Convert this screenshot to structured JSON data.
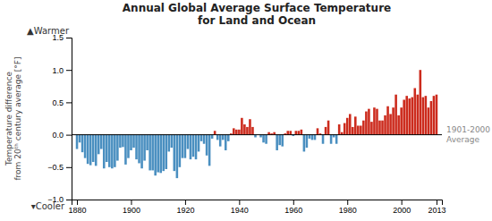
{
  "chart_data": {
    "type": "bar",
    "title": "Annual Global Average Surface Temperature\nfor Land and Ocean",
    "ylabel": "Temperature difference\nfrom 20ᵗʰ century average [°F]",
    "annotations": [
      "▲Warmer",
      "▾Cooler",
      "1901-2000\nAverage"
    ],
    "x": [
      1880,
      1881,
      1882,
      1883,
      1884,
      1885,
      1886,
      1887,
      1888,
      1889,
      1890,
      1891,
      1892,
      1893,
      1894,
      1895,
      1896,
      1897,
      1898,
      1899,
      1900,
      1901,
      1902,
      1903,
      1904,
      1905,
      1906,
      1907,
      1908,
      1909,
      1910,
      1911,
      1912,
      1913,
      1914,
      1915,
      1916,
      1917,
      1918,
      1919,
      1920,
      1921,
      1922,
      1923,
      1924,
      1925,
      1926,
      1927,
      1928,
      1929,
      1930,
      1931,
      1932,
      1933,
      1934,
      1935,
      1936,
      1937,
      1938,
      1939,
      1940,
      1941,
      1942,
      1943,
      1944,
      1945,
      1946,
      1947,
      1948,
      1949,
      1950,
      1951,
      1952,
      1953,
      1954,
      1955,
      1956,
      1957,
      1958,
      1959,
      1960,
      1961,
      1962,
      1963,
      1964,
      1965,
      1966,
      1967,
      1968,
      1969,
      1970,
      1971,
      1972,
      1973,
      1974,
      1975,
      1976,
      1977,
      1978,
      1979,
      1980,
      1981,
      1982,
      1983,
      1984,
      1985,
      1986,
      1987,
      1988,
      1989,
      1990,
      1991,
      1992,
      1993,
      1994,
      1995,
      1996,
      1997,
      1998,
      1999,
      2000,
      2001,
      2002,
      2003,
      2004,
      2005,
      2006,
      2007,
      2008,
      2009,
      2010,
      2011,
      2012,
      2013
    ],
    "values": [
      -0.22,
      -0.12,
      -0.27,
      -0.36,
      -0.45,
      -0.47,
      -0.42,
      -0.48,
      -0.3,
      -0.22,
      -0.52,
      -0.42,
      -0.5,
      -0.52,
      -0.5,
      -0.4,
      -0.2,
      -0.19,
      -0.46,
      -0.36,
      -0.24,
      -0.2,
      -0.38,
      -0.44,
      -0.52,
      -0.4,
      -0.24,
      -0.55,
      -0.55,
      -0.63,
      -0.58,
      -0.59,
      -0.56,
      -0.53,
      -0.26,
      -0.2,
      -0.56,
      -0.67,
      -0.5,
      -0.36,
      -0.36,
      -0.22,
      -0.38,
      -0.34,
      -0.38,
      -0.26,
      -0.1,
      -0.14,
      -0.32,
      -0.48,
      -0.06,
      0.06,
      -0.08,
      -0.18,
      -0.08,
      -0.24,
      -0.1,
      0.02,
      0.1,
      0.08,
      0.08,
      0.26,
      0.16,
      0.12,
      0.24,
      0.12,
      -0.04,
      0.0,
      -0.04,
      -0.12,
      -0.14,
      0.04,
      0.02,
      0.04,
      -0.24,
      -0.16,
      -0.18,
      0.02,
      0.06,
      0.06,
      -0.02,
      0.06,
      0.06,
      0.08,
      -0.26,
      -0.2,
      -0.06,
      -0.08,
      -0.08,
      0.1,
      0.02,
      -0.14,
      0.12,
      0.22,
      -0.14,
      -0.04,
      -0.14,
      0.16,
      0.04,
      0.18,
      0.26,
      0.32,
      0.12,
      0.28,
      0.14,
      0.14,
      0.22,
      0.36,
      0.4,
      0.2,
      0.42,
      0.4,
      0.22,
      0.22,
      0.3,
      0.44,
      0.32,
      0.42,
      0.62,
      0.3,
      0.42,
      0.54,
      0.6,
      0.56,
      0.58,
      0.72,
      0.62,
      1.0,
      0.58,
      0.6,
      0.42,
      0.52,
      0.6,
      0.62
    ],
    "colors": [
      "#4a8fc0",
      "#4a8fc0",
      "#4a8fc0",
      "#4a8fc0",
      "#4a8fc0",
      "#4a8fc0",
      "#4a8fc0",
      "#4a8fc0",
      "#4a8fc0",
      "#4a8fc0",
      "#4a8fc0",
      "#4a8fc0",
      "#4a8fc0",
      "#4a8fc0",
      "#4a8fc0",
      "#4a8fc0",
      "#4a8fc0",
      "#4a8fc0",
      "#4a8fc0",
      "#4a8fc0",
      "#4a8fc0",
      "#4a8fc0",
      "#4a8fc0",
      "#4a8fc0",
      "#4a8fc0",
      "#4a8fc0",
      "#4a8fc0",
      "#4a8fc0",
      "#4a8fc0",
      "#4a8fc0",
      "#4a8fc0",
      "#4a8fc0",
      "#4a8fc0",
      "#4a8fc0",
      "#4a8fc0",
      "#4a8fc0",
      "#4a8fc0",
      "#4a8fc0",
      "#4a8fc0",
      "#4a8fc0",
      "#4a8fc0",
      "#4a8fc0",
      "#4a8fc0",
      "#4a8fc0",
      "#4a8fc0",
      "#4a8fc0",
      "#4a8fc0",
      "#4a8fc0",
      "#4a8fc0",
      "#4a8fc0",
      "#4a8fc0",
      "#cc2b1d",
      "#4a8fc0",
      "#4a8fc0",
      "#4a8fc0",
      "#4a8fc0",
      "#4a8fc0",
      "#cc2b1d",
      "#cc2b1d",
      "#cc2b1d",
      "#cc2b1d",
      "#cc2b1d",
      "#cc2b1d",
      "#cc2b1d",
      "#cc2b1d",
      "#cc2b1d",
      "#4a8fc0",
      "#cc2b1d",
      "#4a8fc0",
      "#4a8fc0",
      "#4a8fc0",
      "#cc2b1d",
      "#cc2b1d",
      "#cc2b1d",
      "#4a8fc0",
      "#4a8fc0",
      "#4a8fc0",
      "#cc2b1d",
      "#cc2b1d",
      "#cc2b1d",
      "#4a8fc0",
      "#cc2b1d",
      "#cc2b1d",
      "#cc2b1d",
      "#4a8fc0",
      "#4a8fc0",
      "#4a8fc0",
      "#4a8fc0",
      "#4a8fc0",
      "#cc2b1d",
      "#cc2b1d",
      "#4a8fc0",
      "#cc2b1d",
      "#cc2b1d",
      "#4a8fc0",
      "#4a8fc0",
      "#4a8fc0",
      "#cc2b1d",
      "#cc2b1d",
      "#cc2b1d",
      "#cc2b1d",
      "#cc2b1d",
      "#cc2b1d",
      "#cc2b1d",
      "#cc2b1d",
      "#cc2b1d",
      "#cc2b1d",
      "#cc2b1d",
      "#cc2b1d",
      "#cc2b1d",
      "#cc2b1d",
      "#cc2b1d",
      "#cc2b1d",
      "#cc2b1d",
      "#cc2b1d",
      "#cc2b1d",
      "#cc2b1d",
      "#cc2b1d",
      "#cc2b1d",
      "#cc2b1d",
      "#cc2b1d",
      "#cc2b1d",
      "#cc2b1d",
      "#cc2b1d",
      "#cc2b1d",
      "#cc2b1d",
      "#cc2b1d",
      "#cc2b1d",
      "#cc2b1d",
      "#cc2b1d",
      "#cc2b1d",
      "#cc2b1d",
      "#cc2b1d",
      "#cc2b1d"
    ],
    "xlim": [
      1878,
      2015
    ],
    "xticks": [
      1880,
      1900,
      1920,
      1940,
      1960,
      1980,
      2000,
      2013
    ],
    "ylim": [
      -1.0,
      1.5
    ],
    "yticks": [
      {
        "value": -1.0,
        "label": "−1.0"
      },
      {
        "value": -0.5,
        "label": "−0.5"
      },
      {
        "value": 0.0,
        "label": "0.0"
      },
      {
        "value": 0.5,
        "label": "0.5"
      },
      {
        "value": 1.0,
        "label": "1.0"
      },
      {
        "value": 1.5,
        "label": "1.5"
      }
    ],
    "grid": false
  }
}
